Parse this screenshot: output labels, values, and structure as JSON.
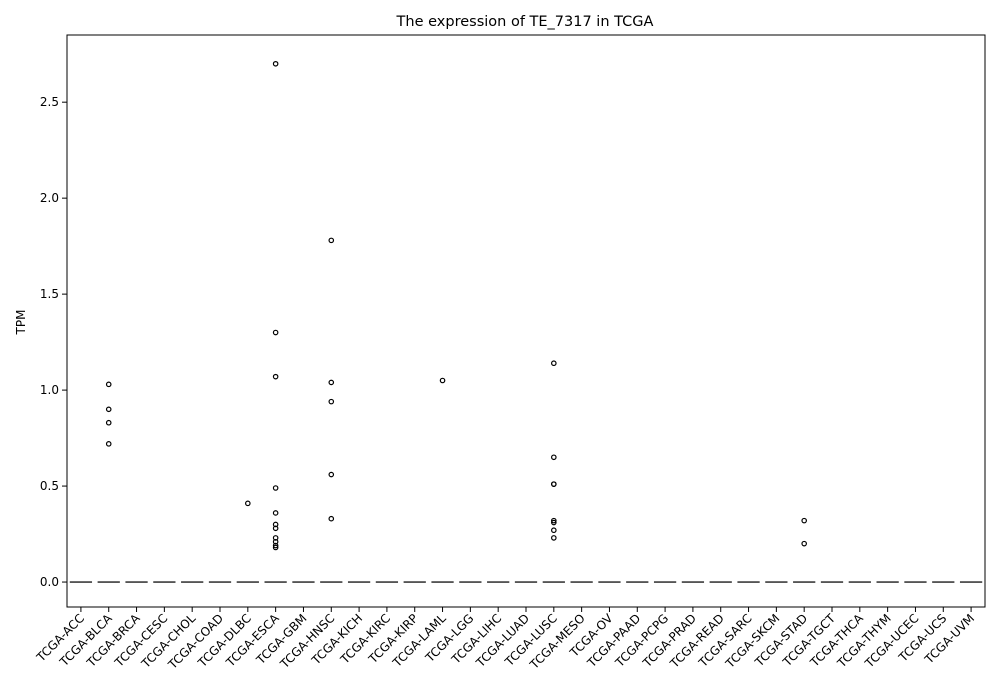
{
  "chart_data": {
    "type": "boxplot",
    "title": "The expression of TE_7317 in TCGA",
    "xlabel": "",
    "ylabel": "TPM",
    "ylim": [
      -0.13,
      2.85
    ],
    "yticks": [
      0.0,
      0.5,
      1.0,
      1.5,
      2.0,
      2.5
    ],
    "ytick_labels": [
      "0.0",
      "0.5",
      "1.0",
      "1.5",
      "2.0",
      "2.5"
    ],
    "grid": false,
    "categories": [
      "TCGA-ACC",
      "TCGA-BLCA",
      "TCGA-BRCA",
      "TCGA-CESC",
      "TCGA-CHOL",
      "TCGA-COAD",
      "TCGA-DLBC",
      "TCGA-ESCA",
      "TCGA-GBM",
      "TCGA-HNSC",
      "TCGA-KICH",
      "TCGA-KIRC",
      "TCGA-KIRP",
      "TCGA-LAML",
      "TCGA-LGG",
      "TCGA-LIHC",
      "TCGA-LUAD",
      "TCGA-LUSC",
      "TCGA-MESO",
      "TCGA-OV",
      "TCGA-PAAD",
      "TCGA-PCPG",
      "TCGA-PRAD",
      "TCGA-READ",
      "TCGA-SARC",
      "TCGA-SKCM",
      "TCGA-STAD",
      "TCGA-TGCT",
      "TCGA-THCA",
      "TCGA-THYM",
      "TCGA-UCEC",
      "TCGA-UCS",
      "TCGA-UVM"
    ],
    "median": [
      0,
      0,
      0,
      0,
      0,
      0,
      0,
      0,
      0,
      0,
      0,
      0,
      0,
      0,
      0,
      0,
      0,
      0,
      0,
      0,
      0,
      0,
      0,
      0,
      0,
      0,
      0,
      0,
      0,
      0,
      0,
      0,
      0
    ],
    "outliers": [
      [],
      [
        1.03,
        0.9,
        0.83,
        0.72
      ],
      [],
      [],
      [],
      [],
      [
        0.41
      ],
      [
        2.7,
        1.3,
        1.07,
        0.49,
        0.36,
        0.3,
        0.28,
        0.23,
        0.21,
        0.19,
        0.18
      ],
      [],
      [
        1.78,
        1.04,
        0.94,
        0.56,
        0.33
      ],
      [],
      [],
      [],
      [
        1.05
      ],
      [],
      [],
      [],
      [
        1.14,
        0.65,
        0.51,
        0.51,
        0.32,
        0.31,
        0.27,
        0.23
      ],
      [],
      [],
      [],
      [],
      [],
      [],
      [],
      [],
      [
        0.32,
        0.2
      ],
      [],
      [],
      [],
      [],
      [],
      []
    ],
    "colors": {
      "box": "#3d3d3d",
      "outlier": "#000000",
      "axis": "#000000"
    }
  }
}
